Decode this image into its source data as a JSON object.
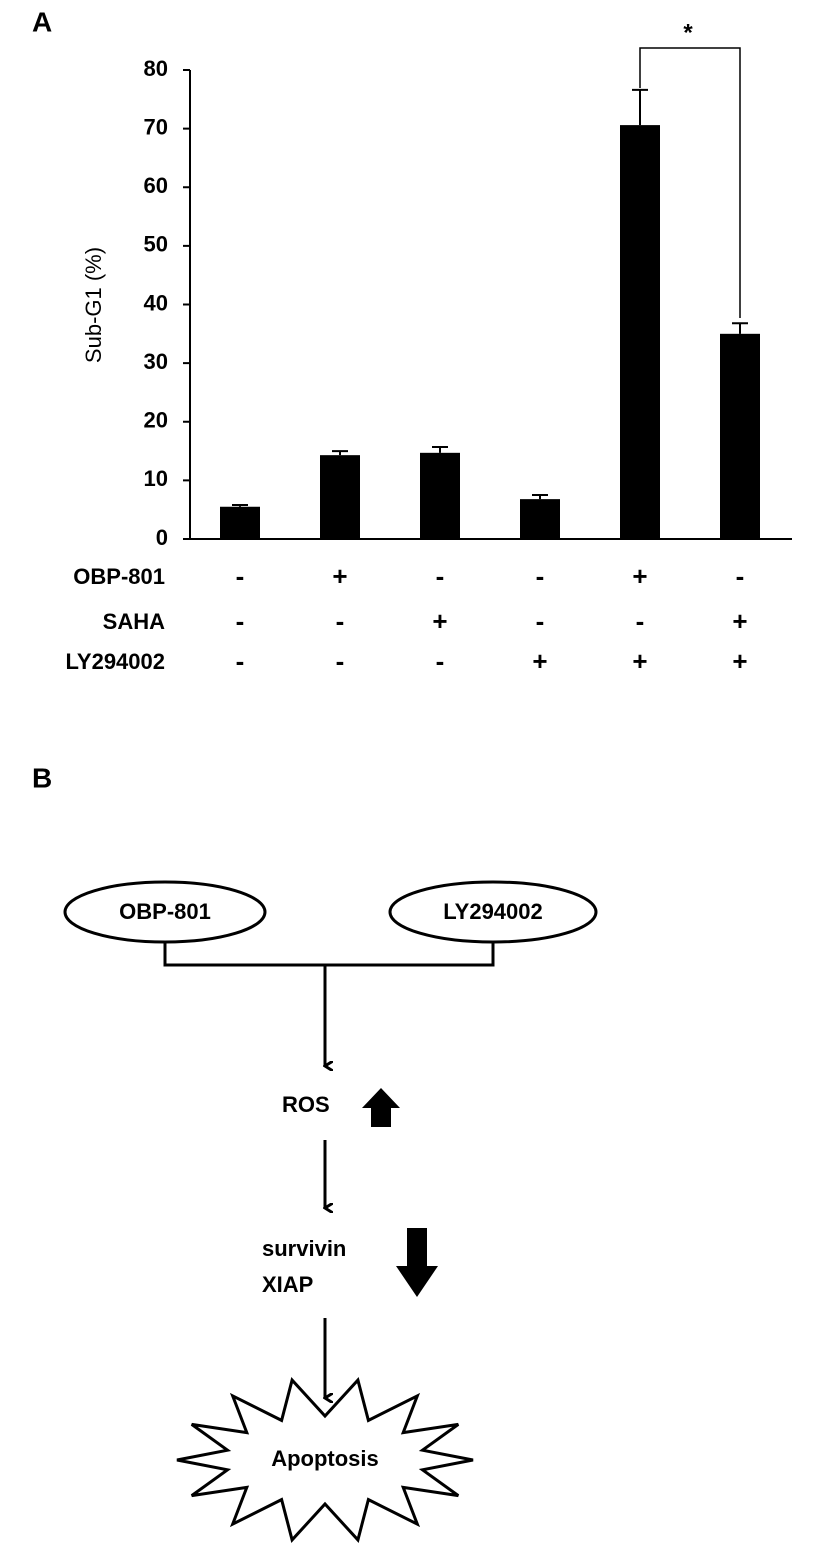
{
  "panel_labels": [
    "A",
    "B"
  ],
  "chart_data": {
    "type": "bar",
    "ylabel": "Sub-G1 (%)",
    "categories": [
      null,
      null,
      null,
      null,
      null,
      null
    ],
    "values": [
      5.5,
      14.3,
      14.7,
      6.8,
      70.6,
      35
    ],
    "errors": [
      0.3,
      0.7,
      1.0,
      0.7,
      6,
      1.8
    ],
    "color": "#000000",
    "ylim": [
      0,
      80
    ],
    "yticks": [
      0,
      10,
      20,
      30,
      40,
      50,
      60,
      70,
      80
    ],
    "annotation": "*",
    "treatments": [
      {
        "name": "OBP-801",
        "signs": [
          "-",
          "+",
          "-",
          "-",
          "+",
          "-"
        ]
      },
      {
        "name": "SAHA",
        "signs": [
          "-",
          "-",
          "+",
          "-",
          "-",
          "+"
        ]
      },
      {
        "name": "LY294002",
        "signs": [
          "-",
          "-",
          "-",
          "+",
          "+",
          "+"
        ]
      }
    ]
  },
  "diagram": {
    "nodes": [
      "OBP-801",
      "LY294002",
      "ROS",
      "survivin",
      "XIAP",
      "Apoptosis"
    ]
  }
}
